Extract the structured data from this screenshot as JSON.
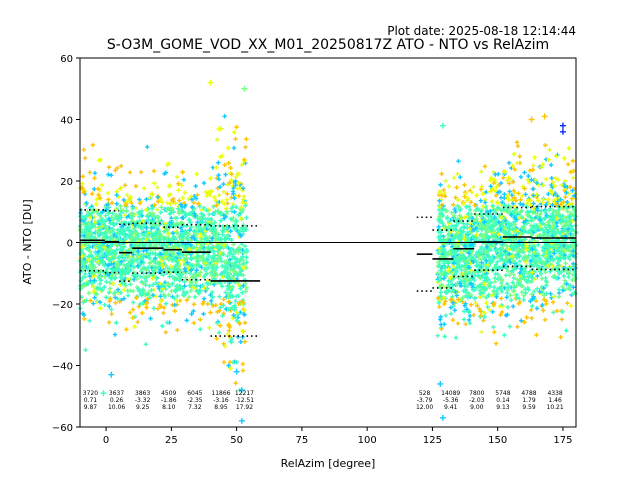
{
  "chart_data": {
    "type": "scatter",
    "plot_date": "Plot date: 2025-08-18 12:14:44",
    "title": "S-O3M_GOME_VOD_XX_M01_20250817Z ATO - NTO vs RelAzim",
    "xlabel": "RelAzim [degree]",
    "ylabel": "ATO - NTO [DU]",
    "xlim": [
      -10,
      180
    ],
    "ylim": [
      -60,
      60
    ],
    "xticks": [
      0,
      25,
      50,
      75,
      100,
      125,
      150,
      175
    ],
    "yticks": [
      -60,
      -40,
      -20,
      0,
      20,
      40,
      60
    ],
    "grid": false,
    "zero_line": 0,
    "colors": {
      "low": "#0a2cff",
      "cyan": "#13c9ff",
      "teal": "#3dffc0",
      "green": "#74ff84",
      "yellow": "#e8ff10",
      "orange": "#ffc400",
      "mean_line": "#000000",
      "std_line": "#000000"
    },
    "clusters": [
      {
        "x": [
          -10,
          54
        ],
        "y": [
          -25,
          32
        ],
        "note": "left scatter region"
      },
      {
        "x": [
          127,
          180
        ],
        "y": [
          -35,
          33
        ],
        "note": "right scatter region"
      }
    ],
    "bins": [
      {
        "x_from": -10,
        "x_to": -0.5,
        "count": "3720",
        "mean": "0.71",
        "std": "9.87"
      },
      {
        "x_from": -0.5,
        "x_to": 5,
        "count": "3637",
        "mean": "0.26",
        "std": "10.06"
      },
      {
        "x_from": 5,
        "x_to": 10,
        "count": "3863",
        "mean": "-3.32",
        "std": "9.25"
      },
      {
        "x_from": 10,
        "x_to": 22,
        "count": "4509",
        "mean": "-1.86",
        "std": "8.10"
      },
      {
        "x_from": 22,
        "x_to": 29,
        "count": "6045",
        "mean": "-2.35",
        "std": "7.32"
      },
      {
        "x_from": 29,
        "x_to": 40,
        "count": "11866",
        "mean": "-3.16",
        "std": "8.95"
      },
      {
        "x_from": 40,
        "x_to": 59,
        "count": "12217",
        "mean": "-12.51",
        "std": "17.92"
      },
      {
        "x_from": 119,
        "x_to": 125,
        "count": "528",
        "mean": "-3.79",
        "std": "12.00"
      },
      {
        "x_from": 125,
        "x_to": 133,
        "count": "14089",
        "mean": "-5.36",
        "std": "9.41"
      },
      {
        "x_from": 133,
        "x_to": 141,
        "count": "7800",
        "mean": "-2.03",
        "std": "9.00"
      },
      {
        "x_from": 141,
        "x_to": 152,
        "count": "5748",
        "mean": "0.14",
        "std": "9.13"
      },
      {
        "x_from": 152,
        "x_to": 163,
        "count": "4788",
        "mean": "1.79",
        "std": "9.59"
      },
      {
        "x_from": 163,
        "x_to": 180,
        "count": "4338",
        "mean": "1.46",
        "std": "10.21"
      }
    ],
    "stat_positions_x": [
      -6,
      4,
      14,
      24,
      34,
      44,
      53,
      122,
      132,
      142,
      152,
      162,
      172
    ]
  }
}
